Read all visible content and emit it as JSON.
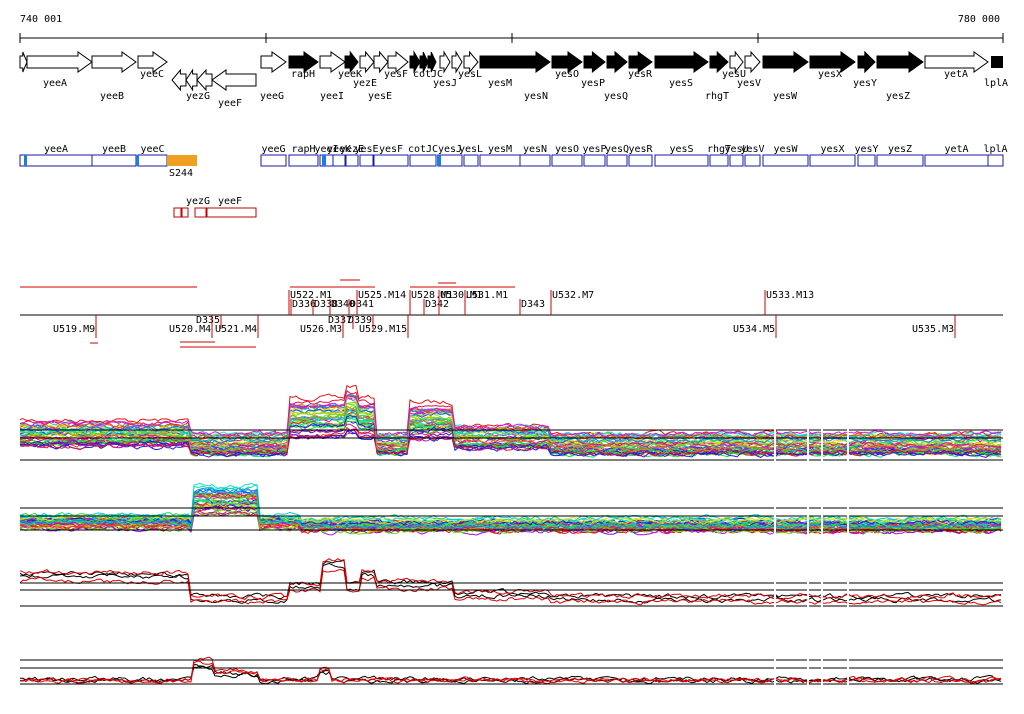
{
  "ruler": {
    "start": "740 001",
    "end": "780 000"
  },
  "genes": [
    "yeeA",
    "yeeB",
    "yeeC",
    "yezG",
    "yeeF",
    "yeeG",
    "rapH",
    "yeeI",
    "yeeK",
    "yezE",
    "yesF",
    "yesE",
    "cotJC",
    "yesJ",
    "yesL",
    "yesM",
    "yesN",
    "yesO",
    "yesP",
    "yesQ",
    "yesR",
    "yesS",
    "rhgT",
    "yesU",
    "yesV",
    "yesW",
    "yesX",
    "yesY",
    "yesZ",
    "yetA",
    "lplA"
  ],
  "features": [
    "yeeA",
    "yeeB",
    "yeeC",
    "yeeG",
    "rapH",
    "yeeI",
    "yeeK",
    "yezE",
    "yesE",
    "yesF",
    "cotJC",
    "yesJ",
    "yesL",
    "yesM",
    "yesN",
    "yesO",
    "yesP",
    "yesQ",
    "yesR",
    "yesS",
    "rhgT",
    "yesU",
    "yesV",
    "yesW",
    "yesX",
    "yesY",
    "yesZ",
    "yetA",
    "lplA"
  ],
  "special": "S244",
  "reverse_features": [
    "yezG",
    "yeeF"
  ],
  "segments_above": [
    "U522.M1",
    "D336",
    "D338",
    "D340",
    "D341",
    "U525.M14",
    "U528.M1",
    "D342",
    "U530.M1",
    "U531.M1",
    "D343",
    "U532.M7",
    "U533.M13"
  ],
  "segments_below": [
    "U519.M9",
    "D335",
    "U520.M4",
    "U521.M4",
    "D337",
    "D339",
    "U526.M3",
    "U529.M15",
    "U534.M5",
    "U535.M3"
  ]
}
